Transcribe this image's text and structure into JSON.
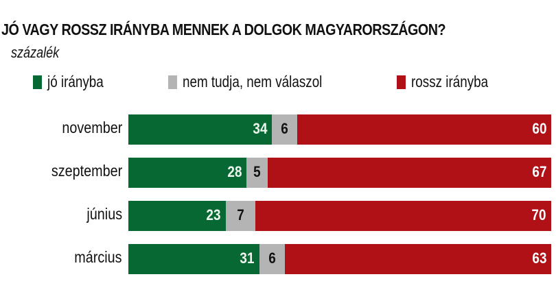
{
  "title": "JÓ VAGY ROSSZ IRÁNYBA MENNEK A DOLGOK MAGYARORSZÁGON?",
  "subtitle": "százalék",
  "colors": {
    "good": "#086834",
    "dk": "#b4b4b4",
    "bad": "#b01116"
  },
  "legend": [
    {
      "label": "jó irányba",
      "color": "#086834"
    },
    {
      "label": "nem tudja, nem válaszol",
      "color": "#b4b4b4"
    },
    {
      "label": "rossz irányba",
      "color": "#b01116"
    }
  ],
  "rows": [
    {
      "label": "november",
      "good": "34",
      "dk": "6",
      "bad": "60"
    },
    {
      "label": "szeptember",
      "good": "28",
      "dk": "5",
      "bad": "67"
    },
    {
      "label": "június",
      "good": "23",
      "dk": "7",
      "bad": "70"
    },
    {
      "label": "március",
      "good": "31",
      "dk": "6",
      "bad": "63"
    }
  ],
  "chart_data": {
    "type": "bar",
    "orientation": "horizontal",
    "stacked": true,
    "title": "JÓ VAGY ROSSZ IRÁNYBA MENNEK A DOLGOK MAGYARORSZÁGON?",
    "subtitle": "százalék",
    "categories": [
      "november",
      "szeptember",
      "június",
      "március"
    ],
    "series": [
      {
        "name": "jó irányba",
        "color": "#086834",
        "values": [
          34,
          28,
          23,
          31
        ]
      },
      {
        "name": "nem tudja, nem válaszol",
        "color": "#b4b4b4",
        "values": [
          6,
          5,
          7,
          6
        ]
      },
      {
        "name": "rossz irányba",
        "color": "#b01116",
        "values": [
          60,
          67,
          70,
          63
        ]
      }
    ],
    "xlabel": "",
    "ylabel": "",
    "xlim": [
      0,
      100
    ],
    "grid": false,
    "legend_position": "top"
  }
}
